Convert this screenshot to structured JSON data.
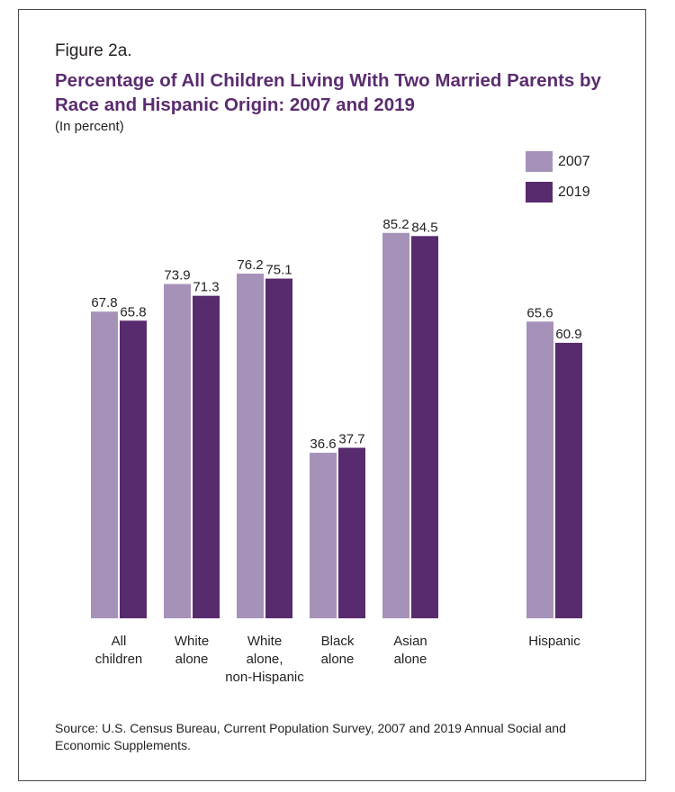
{
  "figure_label": "Figure 2a.",
  "source": "Source: U.S. Census Bureau, Current Population Survey, 2007 and 2019 Annual Social and Economic Supplements.",
  "colors": {
    "series_2007": "#a692b9",
    "series_2019": "#582a6e",
    "title": "#5b2c6f"
  },
  "chart_data": {
    "type": "bar",
    "title": "Percentage of All Children Living With Two Married Parents by Race and Hispanic Origin: 2007 and 2019",
    "subtitle": "(In percent)",
    "xlabel": "",
    "ylabel": "",
    "ylim": [
      0,
      100
    ],
    "grid": false,
    "legend_position": "top-right",
    "categories": [
      [
        "All",
        "children"
      ],
      [
        "White",
        "alone"
      ],
      [
        "White",
        "alone,",
        "non-Hispanic"
      ],
      [
        "Black",
        "alone"
      ],
      [
        "Asian",
        "alone"
      ],
      [
        "Hispanic"
      ]
    ],
    "series": [
      {
        "name": "2007",
        "values": [
          67.8,
          73.9,
          76.2,
          36.6,
          85.2,
          65.6
        ]
      },
      {
        "name": "2019",
        "values": [
          65.8,
          71.3,
          75.1,
          37.7,
          84.5,
          60.9
        ]
      }
    ]
  }
}
